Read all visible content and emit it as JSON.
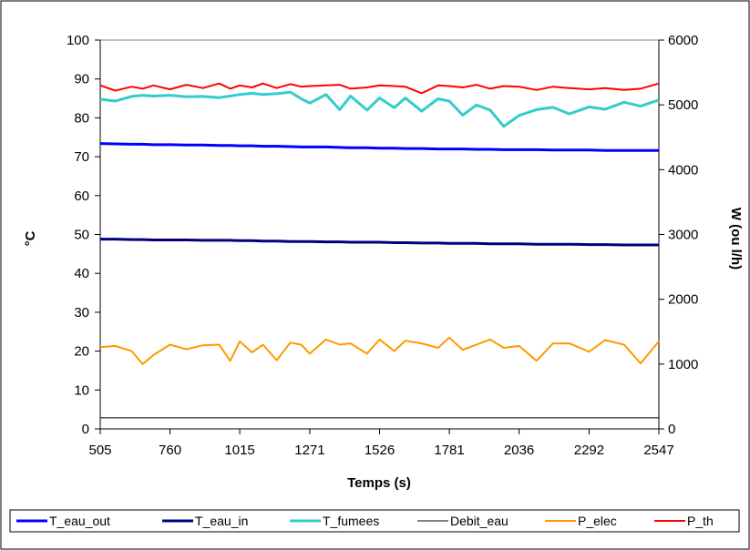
{
  "chart_data": {
    "type": "line",
    "xlabel": "Temps (s)",
    "ylabel_left": "°C",
    "ylabel_right": "W (ou l/h)",
    "x_ticks": [
      "505",
      "760",
      "1015",
      "1271",
      "1526",
      "1781",
      "2036",
      "2292",
      "2547"
    ],
    "y_left_ticks": [
      "0",
      "10",
      "20",
      "30",
      "40",
      "50",
      "60",
      "70",
      "80",
      "90",
      "100"
    ],
    "y_right_ticks": [
      "0",
      "1000",
      "2000",
      "3000",
      "4000",
      "5000",
      "6000"
    ],
    "xlim": [
      505,
      2547
    ],
    "ylim_left": [
      0,
      100
    ],
    "ylim_right": [
      0,
      6000
    ],
    "grid": false,
    "legend_position": "bottom",
    "x": [
      505,
      560,
      620,
      660,
      700,
      760,
      820,
      880,
      940,
      980,
      1015,
      1060,
      1100,
      1150,
      1200,
      1240,
      1271,
      1330,
      1380,
      1420,
      1480,
      1526,
      1580,
      1620,
      1680,
      1740,
      1781,
      1830,
      1880,
      1930,
      1980,
      2036,
      2100,
      2160,
      2220,
      2292,
      2350,
      2420,
      2480,
      2547
    ],
    "series": [
      {
        "name": "T_eau_out",
        "axis": "left",
        "color": "#0000ff",
        "values": [
          73.4,
          73.3,
          73.2,
          73.2,
          73.1,
          73.1,
          73.0,
          73.0,
          72.9,
          72.9,
          72.8,
          72.8,
          72.7,
          72.7,
          72.6,
          72.5,
          72.5,
          72.5,
          72.4,
          72.3,
          72.3,
          72.2,
          72.2,
          72.1,
          72.1,
          72.0,
          72.0,
          72.0,
          71.9,
          71.9,
          71.8,
          71.8,
          71.8,
          71.7,
          71.7,
          71.7,
          71.6,
          71.6,
          71.6,
          71.6
        ]
      },
      {
        "name": "T_eau_in",
        "axis": "left",
        "color": "#000080",
        "values": [
          48.8,
          48.8,
          48.7,
          48.7,
          48.6,
          48.6,
          48.6,
          48.5,
          48.5,
          48.5,
          48.4,
          48.4,
          48.3,
          48.3,
          48.2,
          48.2,
          48.2,
          48.1,
          48.1,
          48.0,
          48.0,
          48.0,
          47.9,
          47.9,
          47.8,
          47.8,
          47.7,
          47.7,
          47.7,
          47.6,
          47.6,
          47.6,
          47.5,
          47.5,
          47.5,
          47.4,
          47.4,
          47.3,
          47.3,
          47.3
        ]
      },
      {
        "name": "T_fumees",
        "axis": "left",
        "color": "#33cccc",
        "values": [
          84.8,
          84.3,
          85.5,
          85.8,
          85.6,
          85.8,
          85.4,
          85.5,
          85.2,
          85.6,
          86.0,
          86.3,
          86.0,
          86.2,
          86.6,
          84.9,
          83.8,
          86.0,
          82.1,
          85.6,
          82.0,
          85.1,
          82.6,
          85.1,
          81.7,
          84.9,
          84.3,
          80.7,
          83.3,
          82.0,
          77.8,
          80.6,
          82.1,
          82.7,
          81.0,
          82.8,
          82.2,
          84.0,
          83.0,
          84.6
        ]
      },
      {
        "name": "Debit_eau",
        "axis": "right",
        "color": "#000000",
        "values": [
          170,
          170,
          170,
          170,
          170,
          170,
          170,
          170,
          170,
          170,
          170,
          170,
          170,
          170,
          170,
          170,
          170,
          170,
          170,
          170,
          170,
          170,
          170,
          170,
          170,
          170,
          170,
          170,
          170,
          170,
          170,
          170,
          170,
          170,
          170,
          170,
          170,
          170,
          170,
          170
        ]
      },
      {
        "name": "P_elec",
        "axis": "right",
        "color": "#ff9900",
        "values": [
          1260,
          1280,
          1200,
          1000,
          1140,
          1300,
          1230,
          1290,
          1300,
          1050,
          1350,
          1180,
          1300,
          1060,
          1330,
          1300,
          1160,
          1380,
          1300,
          1320,
          1160,
          1380,
          1200,
          1360,
          1320,
          1250,
          1410,
          1220,
          1300,
          1380,
          1250,
          1280,
          1050,
          1320,
          1320,
          1190,
          1370,
          1300,
          1010,
          1350
        ]
      },
      {
        "name": "P_th",
        "axis": "right",
        "color": "#ff0000",
        "values": [
          5300,
          5220,
          5280,
          5250,
          5300,
          5240,
          5310,
          5260,
          5330,
          5250,
          5300,
          5270,
          5330,
          5260,
          5320,
          5280,
          5290,
          5300,
          5310,
          5250,
          5270,
          5300,
          5290,
          5280,
          5180,
          5300,
          5290,
          5270,
          5310,
          5250,
          5290,
          5280,
          5230,
          5280,
          5260,
          5240,
          5260,
          5230,
          5250,
          5330
        ]
      }
    ]
  }
}
